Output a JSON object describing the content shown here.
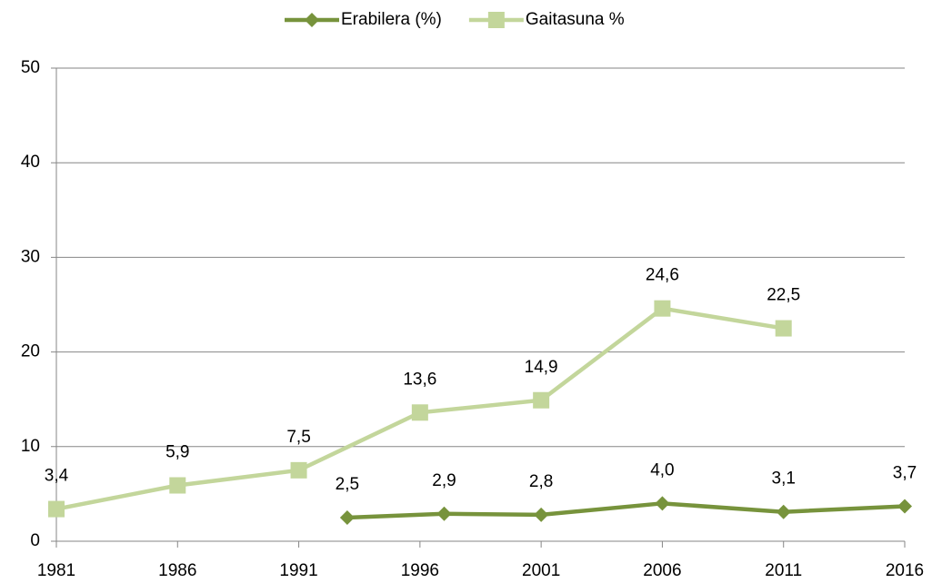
{
  "chart_data": {
    "type": "line",
    "series": [
      {
        "name": "Erabilera (%)",
        "color": "#77933c",
        "marker": "diamond",
        "x": [
          1993,
          1997,
          2001,
          2006,
          2011,
          2016
        ],
        "values": [
          2.5,
          2.9,
          2.8,
          4.0,
          3.1,
          3.7
        ],
        "value_labels": [
          "2,5",
          "2,9",
          "2,8",
          "4,0",
          "3,1",
          "3,7"
        ]
      },
      {
        "name": "Gaitasuna %",
        "color": "#c3d69b",
        "marker": "square",
        "x": [
          1981,
          1986,
          1991,
          1996,
          2001,
          2006,
          2011
        ],
        "values": [
          3.4,
          5.9,
          7.5,
          13.6,
          14.9,
          24.6,
          22.5
        ],
        "value_labels": [
          "3,4",
          "5,9",
          "7,5",
          "13,6",
          "14,9",
          "24,6",
          "22,5"
        ]
      }
    ],
    "xlim": [
      1981,
      2016
    ],
    "xticks": [
      1981,
      1986,
      1991,
      1996,
      2001,
      2006,
      2011,
      2016
    ],
    "ylim": [
      0,
      50
    ],
    "yticks": [
      0,
      10,
      20,
      30,
      40,
      50
    ],
    "grid": true,
    "legend": "top"
  }
}
